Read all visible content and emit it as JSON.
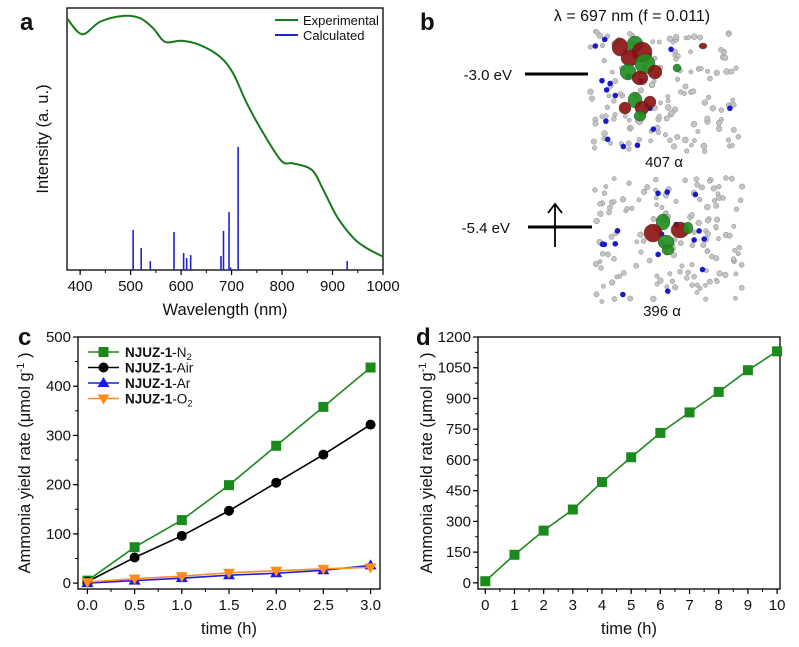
{
  "panel_labels": [
    "a",
    "b",
    "c",
    "d"
  ],
  "panel_b": {
    "title": "λ = 697 nm (f = 0.011)",
    "upper_level": {
      "energy_label": "-3.0 eV",
      "orbital_label": "407 α"
    },
    "lower_level": {
      "energy_label": "-5.4 eV",
      "orbital_label": "396 α",
      "electron": "up-arrow"
    }
  },
  "chart_data": [
    {
      "panel": "a",
      "type": "line",
      "title": "",
      "xlabel": "Wavelength (nm)",
      "ylabel": "Intensity (a. u.)",
      "xlim": [
        374,
        1000
      ],
      "ylim": [
        0,
        100
      ],
      "xticks": [
        "400",
        "500",
        "600",
        "700",
        "800",
        "900",
        "1000"
      ],
      "xtick_values": [
        400,
        500,
        600,
        700,
        800,
        900,
        1000
      ],
      "grid": false,
      "legend": "top-right",
      "series": [
        {
          "name": "Experimental",
          "kind": "line",
          "color": "#1a7a1a",
          "x": [
            374,
            404,
            440,
            486,
            519,
            545,
            568,
            601,
            637,
            677,
            703,
            730,
            763,
            799,
            822,
            859,
            882,
            909,
            942,
            968,
            1000
          ],
          "y": [
            96.1,
            90,
            94.8,
            97,
            96.1,
            92.2,
            87.1,
            87.5,
            85.9,
            81.4,
            75.1,
            63.7,
            52.2,
            41.6,
            40.7,
            38.2,
            30.5,
            20.3,
            12.1,
            8.3,
            5.1
          ]
        },
        {
          "name": "Calculated",
          "kind": "stick",
          "color": "#2222cc",
          "x": [
            505,
            521,
            539,
            586,
            605,
            611,
            619,
            679,
            684,
            695,
            698,
            713,
            929
          ],
          "y": [
            15.3,
            8.4,
            3.4,
            14.5,
            6.5,
            4.6,
            5.7,
            5.3,
            14.9,
            22.1,
            1,
            47,
            3.4
          ]
        }
      ]
    },
    {
      "panel": "c",
      "type": "line",
      "title": "",
      "xlabel": "time (h)",
      "ylabel": "Ammonia yield rate (μmol g",
      "ylabel_sup": "-1",
      "ylabel_end": " )",
      "xlim": [
        -0.1,
        3.1
      ],
      "ylim": [
        -12,
        500
      ],
      "xticks": [
        "0.0",
        "0.5",
        "1.0",
        "1.5",
        "2.0",
        "2.5",
        "3.0"
      ],
      "xtick_values": [
        0,
        0.5,
        1,
        1.5,
        2,
        2.5,
        3
      ],
      "yticks": [
        "0",
        "100",
        "200",
        "300",
        "400",
        "500"
      ],
      "ytick_values": [
        0,
        100,
        200,
        300,
        400,
        500
      ],
      "grid": false,
      "legend": "top-left",
      "series": [
        {
          "name": "NJUZ-1-N2",
          "label": {
            "bold": "NJUZ-1",
            "text": "-N",
            "sub": "2"
          },
          "marker": "square",
          "color": "#1a8a1a",
          "x": [
            0,
            0.5,
            1,
            1.5,
            2,
            2.5,
            3
          ],
          "y": [
            5,
            73,
            128,
            199,
            279,
            358,
            438
          ]
        },
        {
          "name": "NJUZ-1-Air",
          "label": {
            "bold": "NJUZ-1",
            "text": "-Air",
            "sub": ""
          },
          "marker": "circle",
          "color": "#000000",
          "x": [
            0,
            0.5,
            1,
            1.5,
            2,
            2.5,
            3
          ],
          "y": [
            3,
            52,
            96,
            147,
            204,
            261,
            322
          ]
        },
        {
          "name": "NJUZ-1-Ar",
          "label": {
            "bold": "NJUZ-1",
            "text": "-Ar",
            "sub": ""
          },
          "marker": "triangle-up",
          "color": "#1a1ae6",
          "x": [
            0,
            0.5,
            1,
            1.5,
            2,
            2.5,
            3
          ],
          "y": [
            0,
            5,
            10,
            16,
            20,
            26,
            36
          ]
        },
        {
          "name": "NJUZ-1-O2",
          "label": {
            "bold": "NJUZ-1",
            "text": "-O",
            "sub": "2"
          },
          "marker": "triangle-down",
          "color": "#ff8c1a",
          "x": [
            0,
            0.5,
            1,
            1.5,
            2,
            2.5,
            3
          ],
          "y": [
            2,
            9,
            14,
            21,
            25,
            29,
            32
          ]
        }
      ]
    },
    {
      "panel": "d",
      "type": "line",
      "title": "",
      "xlabel": "time (h)",
      "ylabel": "Ammonia yield rate (μmol g",
      "ylabel_sup": "-1",
      "ylabel_end": " )",
      "xlim": [
        -0.25,
        10.1
      ],
      "ylim": [
        -30,
        1200
      ],
      "xticks": [
        "0",
        "1",
        "2",
        "3",
        "4",
        "5",
        "6",
        "7",
        "8",
        "9",
        "10"
      ],
      "xtick_values": [
        0,
        1,
        2,
        3,
        4,
        5,
        6,
        7,
        8,
        9,
        10
      ],
      "yticks": [
        "0",
        "150",
        "300",
        "450",
        "600",
        "750",
        "900",
        "1050",
        "1200"
      ],
      "ytick_values": [
        0,
        150,
        300,
        450,
        600,
        750,
        900,
        1050,
        1200
      ],
      "grid": false,
      "legend": "none",
      "series": [
        {
          "name": "NJUZ-1-N2",
          "marker": "square",
          "color": "#1a8a1a",
          "x": [
            0,
            1,
            2,
            3,
            4,
            5,
            6,
            7,
            8,
            9,
            10
          ],
          "y": [
            8,
            137,
            255,
            358,
            492,
            613,
            732,
            832,
            932,
            1038,
            1130
          ]
        }
      ]
    }
  ]
}
